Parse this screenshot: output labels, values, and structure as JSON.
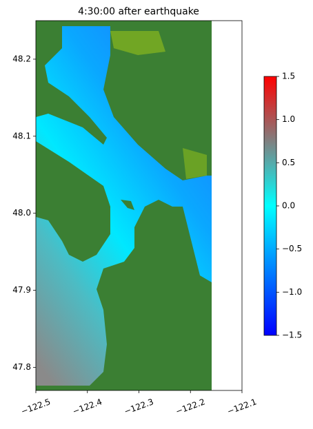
{
  "chart_data": {
    "type": "map",
    "title": "4:30:00 after earthquake",
    "xlim": [
      -122.5,
      -122.1
    ],
    "ylim": [
      47.77,
      48.25
    ],
    "xticks": [
      {
        "value": -122.5,
        "label": "−122.5"
      },
      {
        "value": -122.4,
        "label": "−122.4"
      },
      {
        "value": -122.3,
        "label": "−122.3"
      },
      {
        "value": -122.2,
        "label": "−122.2"
      },
      {
        "value": -122.1,
        "label": "−122.1"
      }
    ],
    "yticks": [
      47.8,
      47.9,
      {
        "value": 48.0,
        "label": "48.0"
      },
      48.1,
      48.2
    ],
    "colorbar": {
      "lim": [
        -1.5,
        1.5
      ],
      "ticks": [
        {
          "value": -1.5,
          "label": "−1.5"
        },
        {
          "value": -1.0,
          "label": "−1.0"
        },
        {
          "value": -0.5,
          "label": "−0.5"
        },
        {
          "value": 0.0,
          "label": "0.0"
        },
        0.5,
        {
          "value": 1.0,
          "label": "1.0"
        },
        1.5
      ]
    }
  }
}
